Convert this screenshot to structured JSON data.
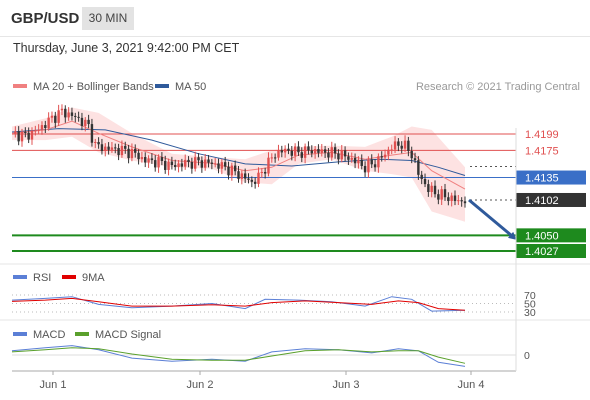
{
  "header": {
    "pair": "GBP/USD",
    "timeframe": "30 MIN"
  },
  "timestamp": "Thursday, June 3, 2021 9:42:00 PM CET",
  "legend": {
    "ma20_label": "MA 20 + Bollinger Bands",
    "ma50_label": "MA 50",
    "credit": "Research © 2021 Trading Central",
    "ma20_color": "#f08080",
    "ma50_color": "#2f5a9b"
  },
  "colors": {
    "up_candle": "#e05050",
    "down_candle": "#333333",
    "band_fill": "#fde2e2",
    "resistance": "#e05050",
    "pivot": "#3a6fc7",
    "support": "#1e8a1e",
    "arrow": "#2f5a9b",
    "rsi": "#5b7fd6",
    "rsi_ma": "#e00000",
    "macd": "#5b7fd6",
    "macd_signal": "#5aa02c"
  },
  "chart_data": [
    {
      "type": "candlestick",
      "title": "GBP/USD 30 MIN",
      "x_tick_labels": [
        "Jun 1",
        "Jun 2",
        "Jun 3",
        "Jun 4"
      ],
      "ylim": [
        1.4014,
        1.4242
      ],
      "levels": [
        {
          "value": 1.4199,
          "label": "1.4199",
          "role": "resistance"
        },
        {
          "value": 1.4175,
          "label": "1.4175",
          "role": "resistance"
        },
        {
          "value": 1.4135,
          "label": "1.4135",
          "role": "pivot"
        },
        {
          "value": 1.4102,
          "label": "1.4102",
          "role": "last"
        },
        {
          "value": 1.405,
          "label": "1.4050",
          "role": "support"
        },
        {
          "value": 1.4027,
          "label": "1.4027",
          "role": "support"
        }
      ],
      "close_path": [
        [
          0,
          1.42
        ],
        [
          4,
          1.4196
        ],
        [
          8,
          1.4206
        ],
        [
          12,
          1.4222
        ],
        [
          15,
          1.4232
        ],
        [
          18,
          1.4226
        ],
        [
          21,
          1.4218
        ],
        [
          23,
          1.421
        ],
        [
          25,
          1.4182
        ],
        [
          28,
          1.4178
        ],
        [
          32,
          1.4176
        ],
        [
          36,
          1.4172
        ],
        [
          40,
          1.416
        ],
        [
          44,
          1.4158
        ],
        [
          48,
          1.4152
        ],
        [
          52,
          1.4156
        ],
        [
          56,
          1.4158
        ],
        [
          60,
          1.4156
        ],
        [
          64,
          1.415
        ],
        [
          68,
          1.414
        ],
        [
          72,
          1.4128
        ],
        [
          74,
          1.4135
        ],
        [
          76,
          1.415
        ],
        [
          79,
          1.417
        ],
        [
          82,
          1.4175
        ],
        [
          86,
          1.4172
        ],
        [
          90,
          1.4175
        ],
        [
          94,
          1.4172
        ],
        [
          98,
          1.417
        ],
        [
          102,
          1.4162
        ],
        [
          106,
          1.415
        ],
        [
          110,
          1.416
        ],
        [
          114,
          1.418
        ],
        [
          117,
          1.4185
        ],
        [
          120,
          1.417
        ],
        [
          122,
          1.414
        ],
        [
          125,
          1.4118
        ],
        [
          128,
          1.411
        ],
        [
          131,
          1.4106
        ],
        [
          134,
          1.41
        ],
        [
          136,
          1.4102
        ]
      ],
      "ma20": [
        [
          0,
          1.42
        ],
        [
          10,
          1.4205
        ],
        [
          18,
          1.4218
        ],
        [
          26,
          1.42
        ],
        [
          36,
          1.418
        ],
        [
          48,
          1.416
        ],
        [
          60,
          1.4156
        ],
        [
          70,
          1.4145
        ],
        [
          78,
          1.415
        ],
        [
          86,
          1.4168
        ],
        [
          96,
          1.4172
        ],
        [
          106,
          1.4162
        ],
        [
          114,
          1.4168
        ],
        [
          120,
          1.4172
        ],
        [
          126,
          1.4145
        ],
        [
          136,
          1.4118
        ]
      ],
      "bollinger_upper": [
        [
          0,
          1.421
        ],
        [
          10,
          1.4222
        ],
        [
          18,
          1.4238
        ],
        [
          26,
          1.423
        ],
        [
          36,
          1.42
        ],
        [
          48,
          1.417
        ],
        [
          60,
          1.4165
        ],
        [
          70,
          1.4162
        ],
        [
          78,
          1.4175
        ],
        [
          86,
          1.418
        ],
        [
          96,
          1.4182
        ],
        [
          106,
          1.418
        ],
        [
          114,
          1.4195
        ],
        [
          120,
          1.421
        ],
        [
          126,
          1.4205
        ],
        [
          136,
          1.415
        ]
      ],
      "bollinger_lower": [
        [
          0,
          1.419
        ],
        [
          10,
          1.419
        ],
        [
          18,
          1.4195
        ],
        [
          26,
          1.4172
        ],
        [
          36,
          1.416
        ],
        [
          48,
          1.415
        ],
        [
          60,
          1.4148
        ],
        [
          70,
          1.4128
        ],
        [
          78,
          1.4125
        ],
        [
          86,
          1.4155
        ],
        [
          96,
          1.4162
        ],
        [
          106,
          1.4145
        ],
        [
          114,
          1.414
        ],
        [
          120,
          1.4135
        ],
        [
          126,
          1.4085
        ],
        [
          136,
          1.407
        ]
      ],
      "ma50": [
        [
          0,
          1.4202
        ],
        [
          14,
          1.4207
        ],
        [
          28,
          1.4205
        ],
        [
          42,
          1.419
        ],
        [
          56,
          1.417
        ],
        [
          70,
          1.4155
        ],
        [
          84,
          1.4152
        ],
        [
          98,
          1.4158
        ],
        [
          110,
          1.4162
        ],
        [
          120,
          1.416
        ],
        [
          128,
          1.415
        ],
        [
          136,
          1.4138
        ]
      ],
      "projection": {
        "from": [
          136,
          1.4102
        ],
        "to": [
          150,
          1.405
        ]
      }
    },
    {
      "type": "line",
      "title": "RSI",
      "series": [
        {
          "name": "RSI",
          "values": [
            [
              0,
              58
            ],
            [
              10,
              62
            ],
            [
              18,
              66
            ],
            [
              26,
              48
            ],
            [
              36,
              40
            ],
            [
              48,
              44
            ],
            [
              60,
              50
            ],
            [
              70,
              38
            ],
            [
              76,
              60
            ],
            [
              86,
              58
            ],
            [
              96,
              54
            ],
            [
              106,
              44
            ],
            [
              114,
              66
            ],
            [
              120,
              60
            ],
            [
              126,
              32
            ],
            [
              136,
              34
            ]
          ]
        },
        {
          "name": "9MA",
          "values": [
            [
              0,
              55
            ],
            [
              10,
              58
            ],
            [
              18,
              62
            ],
            [
              26,
              54
            ],
            [
              36,
              44
            ],
            [
              48,
              44
            ],
            [
              60,
              47
            ],
            [
              70,
              44
            ],
            [
              78,
              52
            ],
            [
              88,
              56
            ],
            [
              98,
              52
            ],
            [
              108,
              48
            ],
            [
              116,
              56
            ],
            [
              122,
              52
            ],
            [
              128,
              38
            ],
            [
              136,
              34
            ]
          ]
        }
      ],
      "ylim": [
        20,
        80
      ],
      "y_tick_labels": [
        "70",
        "50",
        "30"
      ]
    },
    {
      "type": "line",
      "title": "MACD",
      "series": [
        {
          "name": "MACD",
          "values": [
            [
              0,
              0.0008
            ],
            [
              10,
              0.0014
            ],
            [
              18,
              0.0018
            ],
            [
              26,
              0.001
            ],
            [
              36,
              -0.0006
            ],
            [
              48,
              -0.0012
            ],
            [
              60,
              -0.0008
            ],
            [
              70,
              -0.0012
            ],
            [
              78,
              0.0006
            ],
            [
              88,
              0.0012
            ],
            [
              98,
              0.001
            ],
            [
              108,
              0.0004
            ],
            [
              116,
              0.0012
            ],
            [
              122,
              0.0008
            ],
            [
              128,
              -0.0014
            ],
            [
              136,
              -0.0022
            ]
          ]
        },
        {
          "name": "MACD Signal",
          "values": [
            [
              0,
              0.0006
            ],
            [
              10,
              0.001
            ],
            [
              18,
              0.0014
            ],
            [
              26,
              0.0012
            ],
            [
              36,
              0.0002
            ],
            [
              48,
              -0.0008
            ],
            [
              60,
              -0.001
            ],
            [
              70,
              -0.001
            ],
            [
              78,
              -0.0002
            ],
            [
              88,
              0.0008
            ],
            [
              98,
              0.001
            ],
            [
              108,
              0.0006
            ],
            [
              116,
              0.0008
            ],
            [
              122,
              0.0008
            ],
            [
              128,
              -0.0004
            ],
            [
              136,
              -0.0016
            ]
          ]
        }
      ],
      "ylim": [
        -0.003,
        0.003
      ],
      "y_tick_labels": [
        "0"
      ]
    }
  ]
}
